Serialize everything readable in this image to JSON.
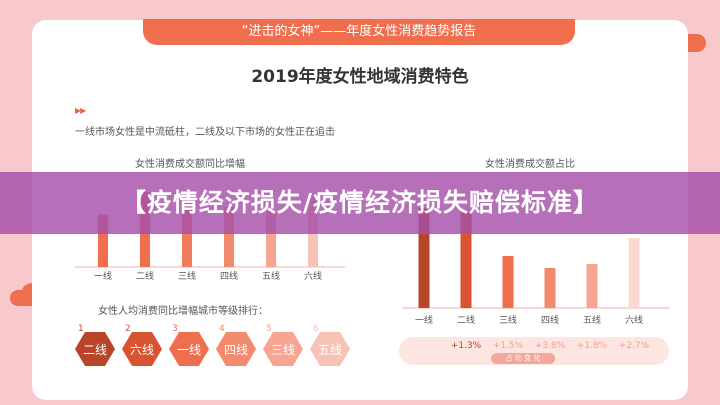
{
  "header": {
    "title": "“进击的女神”——年度女性消费趋势报告"
  },
  "main_title": "2019年度女性地域消费特色",
  "description": "一线市场女性是中流砥柱，二线及以下市场的女性正在追击",
  "rank_section": {
    "title": "女性人均消费同比增幅城市等级排行：",
    "items": [
      {
        "rank": "1",
        "label": "二线",
        "color": "#b8452a"
      },
      {
        "rank": "2",
        "label": "六线",
        "color": "#d8532f"
      },
      {
        "rank": "3",
        "label": "一线",
        "color": "#ee6e4e"
      },
      {
        "rank": "4",
        "label": "四线",
        "color": "#f28a6e"
      },
      {
        "rank": "5",
        "label": "三线",
        "color": "#f5a592"
      },
      {
        "rank": "6",
        "label": "五线",
        "color": "#f9c2b6"
      }
    ]
  },
  "banner": {
    "text": "【疫情经济损失/疫情经济损失赔偿标准】"
  },
  "chart_data": [
    {
      "type": "bar",
      "title": "女性消费成交额同比增幅",
      "categories": [
        "一线",
        "二线",
        "三线",
        "四线",
        "五线",
        "六线"
      ],
      "values": [
        0.7,
        1.0,
        0.85,
        0.8,
        0.75,
        0.95
      ],
      "colors": [
        "#ee6e4e",
        "#ee6e4e",
        "#f07b5e",
        "#f28a6e",
        "#f5a592",
        "#f9c2b6"
      ]
    },
    {
      "type": "bar",
      "title": "女性消费成交额占比",
      "categories": [
        "一线",
        "二线",
        "三线",
        "四线",
        "五线",
        "六线"
      ],
      "values": [
        1.0,
        0.98,
        0.52,
        0.4,
        0.44,
        0.7
      ],
      "colors": [
        "#b8452a",
        "#d8532f",
        "#ee6e4e",
        "#f28a6e",
        "#f5a592",
        "#fcd8d2"
      ],
      "changes": [
        "",
        "+1.3%",
        "+1.5%",
        "+3.8%",
        "+1.8%",
        "+2.7%"
      ],
      "change_caption": "占 比 变 化"
    }
  ]
}
